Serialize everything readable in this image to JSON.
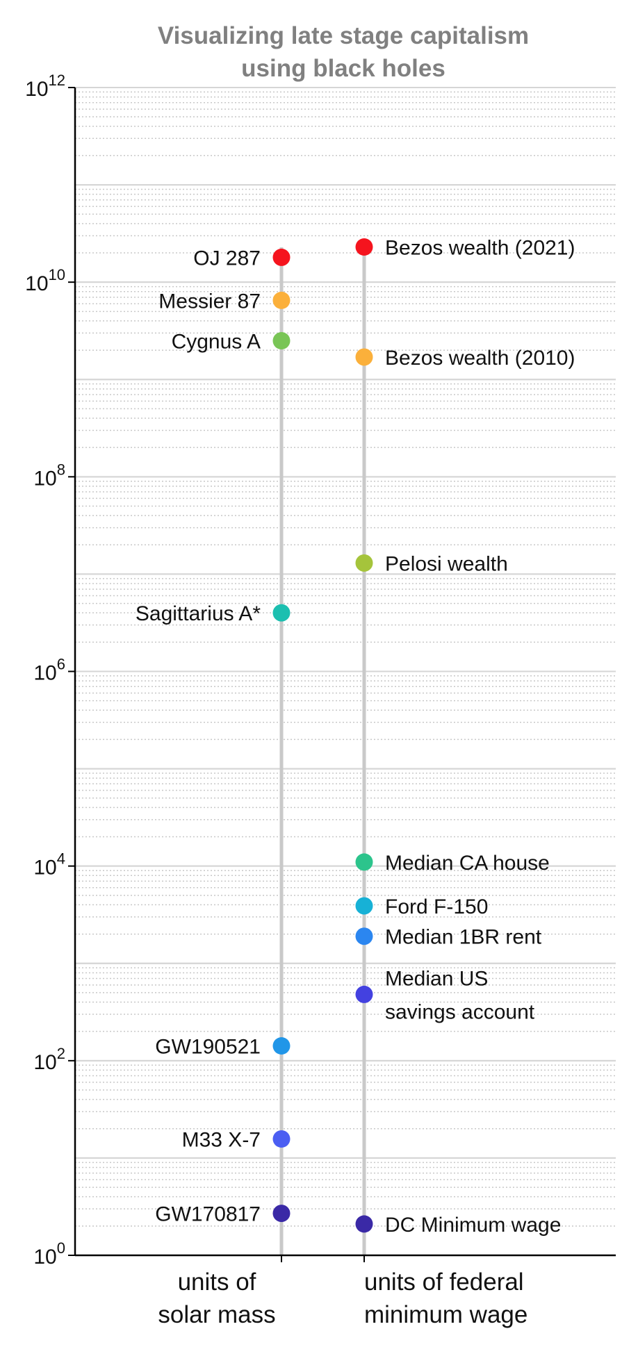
{
  "chart_data": {
    "type": "scatter",
    "title": [
      "Visualizing late stage capitalism",
      "using black holes"
    ],
    "yscale": "log",
    "ylim": [
      1,
      1000000000000
    ],
    "yticks": [
      {
        "value": 1,
        "base": "10",
        "exp": "0"
      },
      {
        "value": 100,
        "base": "10",
        "exp": "2"
      },
      {
        "value": 10000,
        "base": "10",
        "exp": "4"
      },
      {
        "value": 1000000,
        "base": "10",
        "exp": "6"
      },
      {
        "value": 100000000,
        "base": "10",
        "exp": "8"
      },
      {
        "value": 10000000000,
        "base": "10",
        "exp": "10"
      },
      {
        "value": 1000000000000,
        "base": "10",
        "exp": "12"
      }
    ],
    "grid": true,
    "categories": [
      [
        "units of",
        "solar mass"
      ],
      [
        "units of federal",
        "minimum wage"
      ]
    ],
    "series": [
      {
        "category_index": 0,
        "label_side": "left",
        "points": [
          {
            "label": [
              "OJ 287"
            ],
            "value": 18000000000,
            "color": "#f5141e"
          },
          {
            "label": [
              "Messier 87"
            ],
            "value": 6500000000,
            "color": "#fbb03b"
          },
          {
            "label": [
              "Cygnus A"
            ],
            "value": 2500000000,
            "color": "#79c556"
          },
          {
            "label": [
              "Sagittarius A*"
            ],
            "value": 4000000,
            "color": "#1cbfb0"
          },
          {
            "label": [
              "GW190521"
            ],
            "value": 142,
            "color": "#2196e8"
          },
          {
            "label": [
              "M33 X-7"
            ],
            "value": 15.7,
            "color": "#4b5ef2"
          },
          {
            "label": [
              "GW170817"
            ],
            "value": 2.7,
            "color": "#3a29a6"
          }
        ]
      },
      {
        "category_index": 1,
        "label_side": "right",
        "points": [
          {
            "label": [
              "Bezos wealth (2021)"
            ],
            "value": 23000000000,
            "color": "#f5141e"
          },
          {
            "label": [
              "Bezos wealth (2010)"
            ],
            "value": 1700000000,
            "color": "#fbb03b"
          },
          {
            "label": [
              "Pelosi wealth"
            ],
            "value": 13000000,
            "color": "#a5c43b"
          },
          {
            "label": [
              "Median CA house"
            ],
            "value": 11000,
            "color": "#2cc48c"
          },
          {
            "label": [
              "Ford F-150"
            ],
            "value": 3900,
            "color": "#17b1d6"
          },
          {
            "label": [
              "Median 1BR rent"
            ],
            "value": 1900,
            "color": "#2b86f0"
          },
          {
            "label": [
              "Median US",
              "savings account"
            ],
            "value": 480,
            "color": "#4341e0"
          },
          {
            "label": [
              "DC Minimum wage"
            ],
            "value": 2.1,
            "color": "#3a29a6"
          }
        ]
      }
    ]
  }
}
